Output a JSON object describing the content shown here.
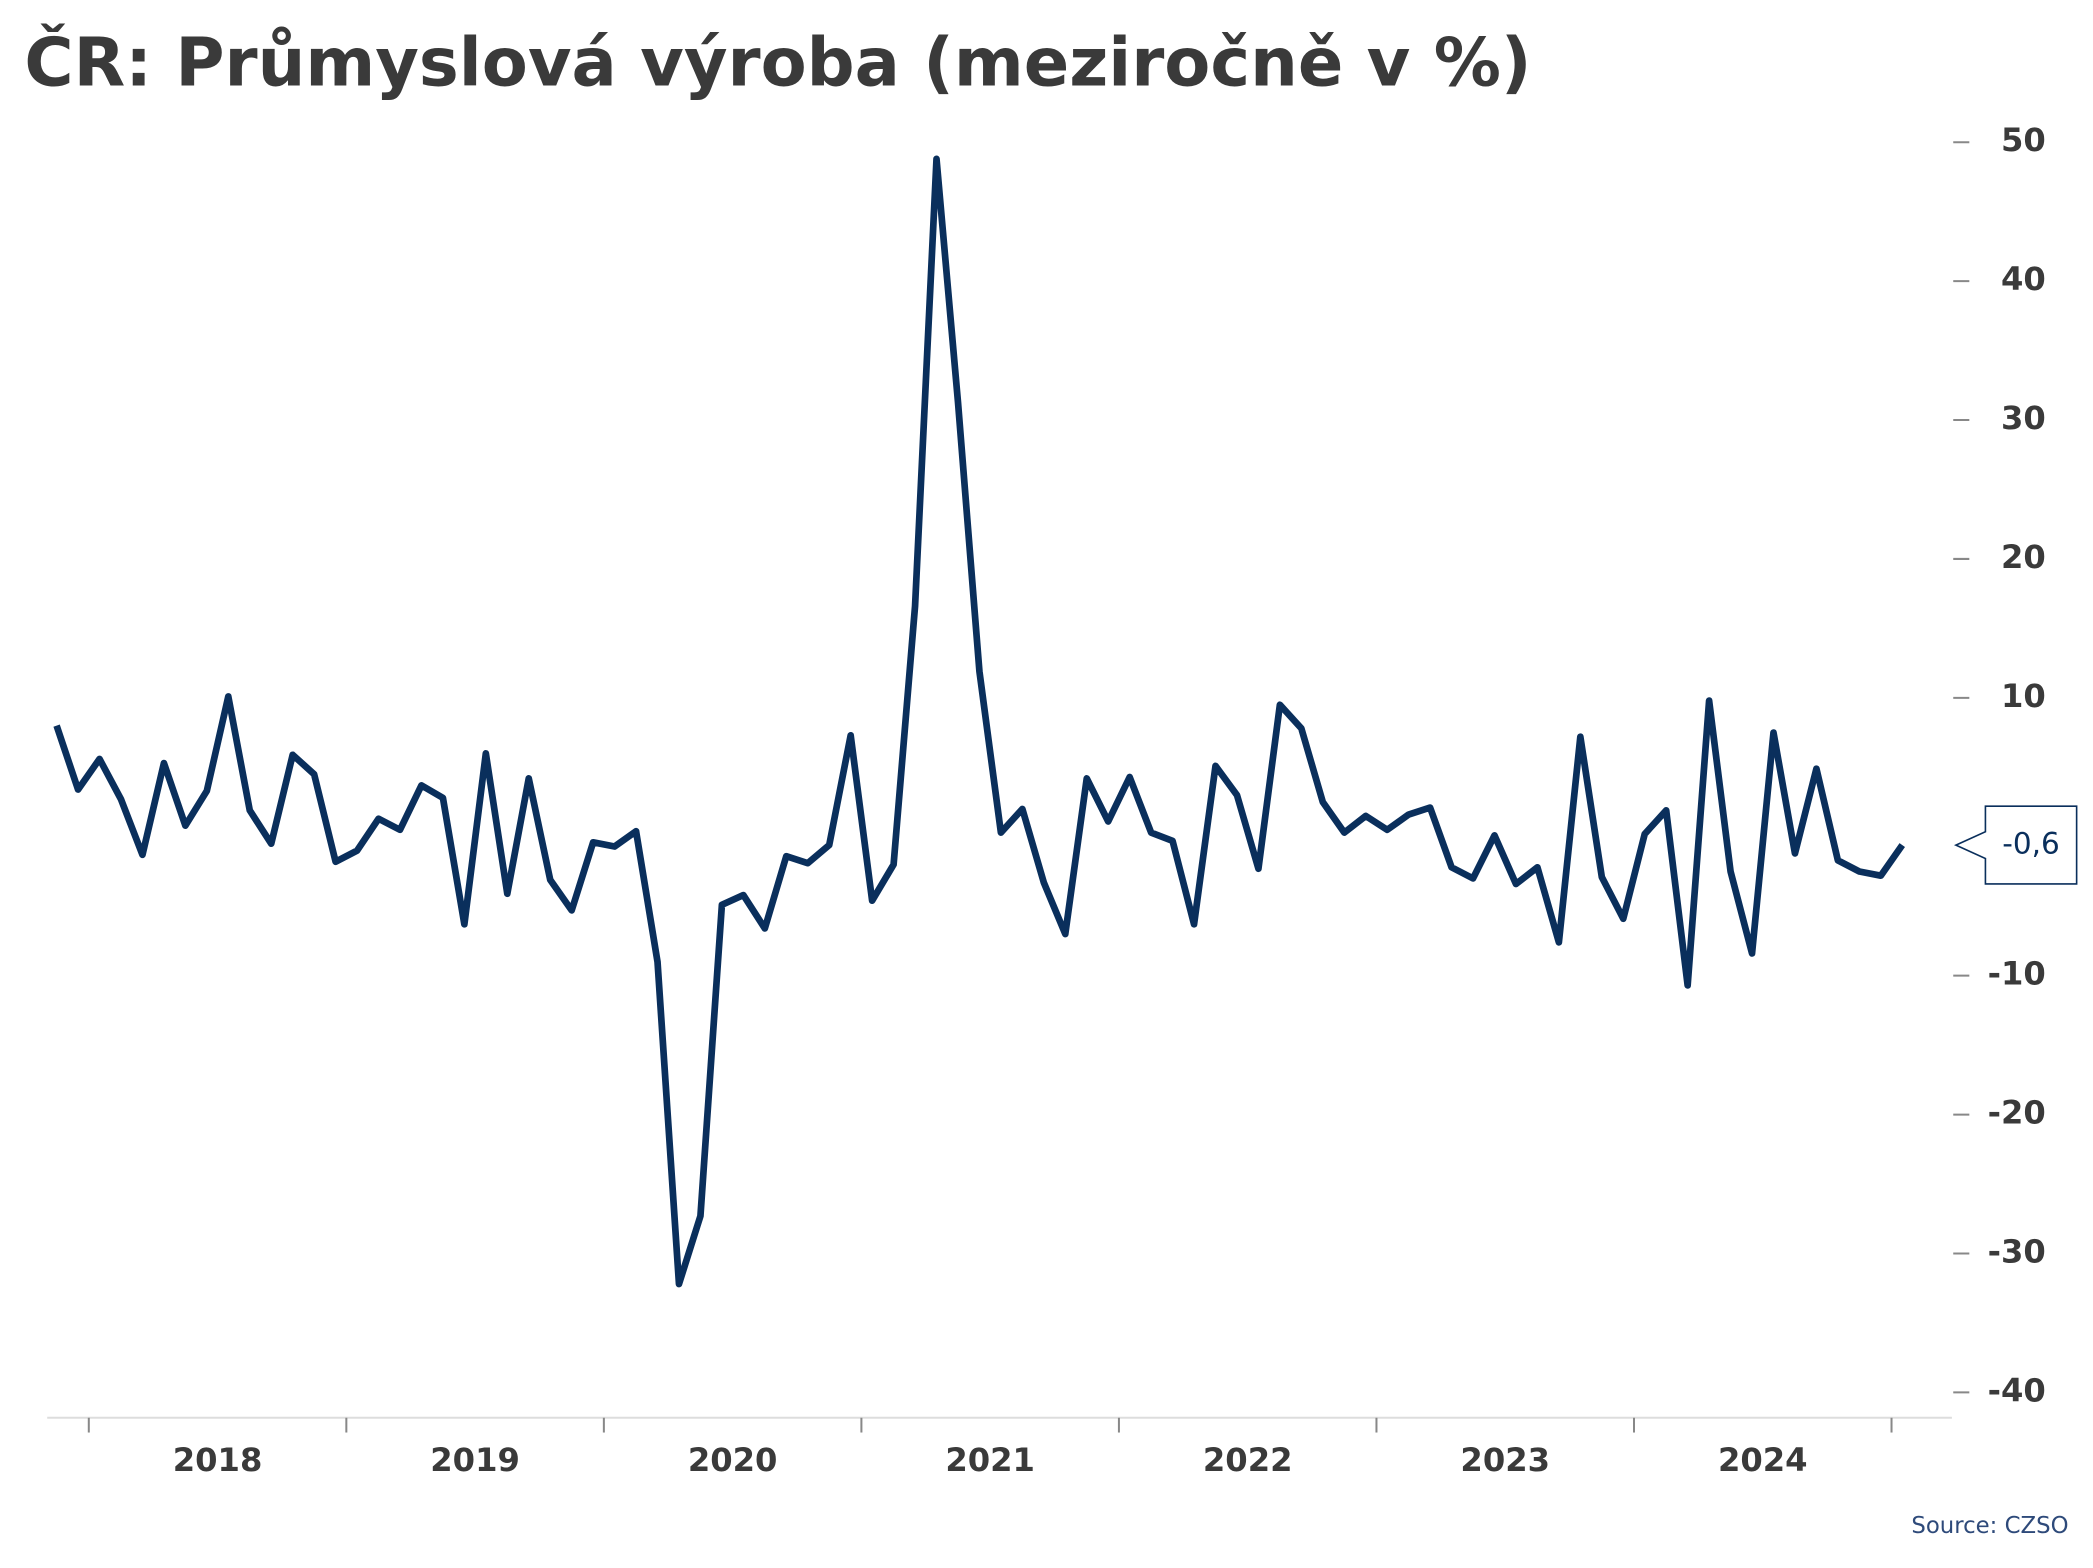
{
  "chart_data": {
    "type": "line",
    "title": "ČR: Průmyslová výroba (meziročně v %)",
    "source": "Source: CZSO",
    "color": "#0a2f5c",
    "year_labels": [
      "2018",
      "2019",
      "2020",
      "2021",
      "2022",
      "2023",
      "2024"
    ],
    "values": [
      8.0,
      3.4,
      5.6,
      2.7,
      -1.3,
      5.3,
      0.8,
      3.3,
      10.1,
      1.9,
      -0.5,
      5.9,
      4.5,
      -1.8,
      -1.0,
      1.3,
      0.5,
      3.7,
      2.8,
      -6.3,
      6.0,
      -4.1,
      4.2,
      -3.1,
      -5.3,
      -0.4,
      -0.7,
      0.4,
      -9.0,
      -32.2,
      -27.3,
      -4.9,
      -4.2,
      -6.6,
      -1.4,
      -1.9,
      -0.6,
      7.3,
      -4.6,
      -2.0,
      16.6,
      48.8,
      31.3,
      11.9,
      0.3,
      2.0,
      -3.3,
      -7.0,
      4.2,
      1.1,
      4.3,
      0.3,
      -0.3,
      -6.3,
      5.1,
      3.0,
      -2.3,
      9.5,
      7.8,
      2.5,
      0.3,
      1.5,
      0.5,
      1.6,
      2.1,
      -2.2,
      -3.0,
      0.1,
      -3.4,
      -2.2,
      -7.6,
      7.2,
      -2.9,
      -5.9,
      0.2,
      1.9,
      -10.7,
      9.8,
      -2.5,
      -8.4,
      7.5,
      -1.2,
      4.9,
      -1.7,
      -2.5,
      -2.8,
      -0.6
    ],
    "value_labels": [
      null,
      null,
      null,
      null,
      null,
      null,
      null,
      null,
      null,
      null,
      null,
      null,
      null,
      null,
      null,
      null,
      null,
      null,
      null,
      null,
      null,
      null,
      null,
      null,
      null,
      null,
      null,
      null,
      null,
      null,
      null,
      null,
      null,
      null,
      null,
      null,
      null,
      null,
      null,
      null,
      null,
      null,
      null,
      null,
      null,
      null,
      null,
      null,
      null,
      null,
      null,
      null,
      null,
      null,
      null,
      null,
      null,
      null,
      null,
      null,
      null,
      null,
      null,
      null,
      null,
      null,
      null,
      null,
      null,
      null,
      null,
      null,
      null,
      null,
      null,
      null,
      null,
      null,
      null,
      null,
      null,
      null,
      null,
      null,
      null,
      null,
      "-0,6"
    ],
    "ylim": [
      -42,
      52
    ],
    "yticks": [
      -40,
      -30,
      -20,
      -10,
      10,
      20,
      30,
      40,
      50
    ]
  }
}
